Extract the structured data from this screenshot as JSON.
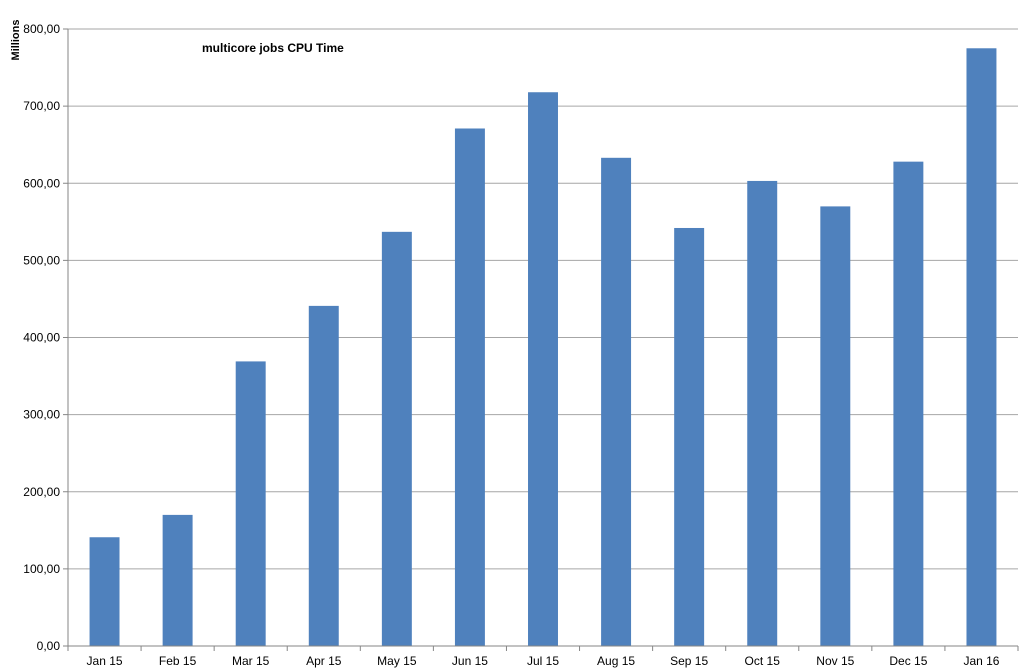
{
  "chart_data": {
    "type": "bar",
    "title": "multicore  jobs CPU Time",
    "ylabel": "Millions",
    "xlabel": "",
    "categories": [
      "Jan 15",
      "Feb 15",
      "Mar 15",
      "Apr 15",
      "May 15",
      "Jun 15",
      "Jul 15",
      "Aug 15",
      "Sep 15",
      "Oct 15",
      "Nov 15",
      "Dec 15",
      "Jan 16"
    ],
    "values": [
      141,
      170,
      369,
      441,
      537,
      671,
      718,
      633,
      542,
      603,
      570,
      628,
      775
    ],
    "ylim": [
      0,
      800
    ],
    "yticks": [
      "0,00",
      "100,00",
      "200,00",
      "300,00",
      "400,00",
      "500,00",
      "600,00",
      "700,00",
      "800,00"
    ],
    "grid": true,
    "legend": "none",
    "bar_color": "#4F81BD",
    "gridline_color": "#A6A6A6",
    "axis_color": "#868686"
  }
}
